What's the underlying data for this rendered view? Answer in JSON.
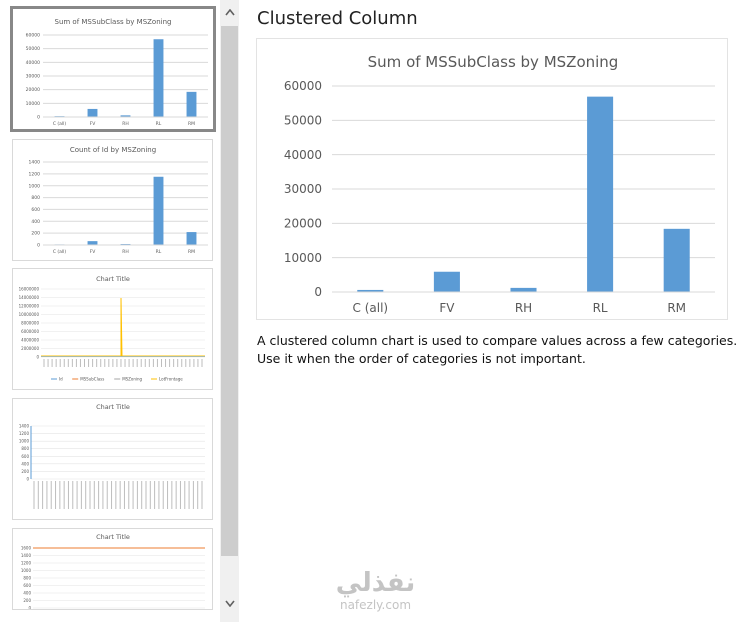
{
  "preview": {
    "title": "Clustered Column",
    "description": "A clustered column chart is used to compare values across a few categories. Use it when the order of categories is not important."
  },
  "thumbnails": [
    {
      "title": "Sum of MSSubClass by MSZoning",
      "selected": true,
      "type": "bar",
      "categories": [
        "C (all)",
        "FV",
        "RH",
        "RL",
        "RM"
      ],
      "values": [
        600,
        5900,
        1200,
        56900,
        18400
      ],
      "y_ticks": [
        "0",
        "10000",
        "20000",
        "30000",
        "40000",
        "50000",
        "60000"
      ],
      "ylim": [
        0,
        60000
      ]
    },
    {
      "title": "Count of Id by MSZoning",
      "selected": false,
      "type": "bar",
      "categories": [
        "C (all)",
        "FV",
        "RH",
        "RL",
        "RM"
      ],
      "values": [
        10,
        65,
        16,
        1151,
        218
      ],
      "y_ticks": [
        "0",
        "200",
        "400",
        "600",
        "800",
        "1000",
        "1200",
        "1400"
      ],
      "ylim": [
        0,
        1400
      ]
    },
    {
      "title": "Chart Title",
      "selected": false,
      "type": "line",
      "y_ticks": [
        "0",
        "2000000",
        "4000000",
        "6000000",
        "8000000",
        "10000000",
        "12000000",
        "14000000",
        "16000000"
      ],
      "ylim": [
        0,
        16000000
      ],
      "legend": [
        "Id",
        "MSSubClass",
        "MSZoning",
        "LotFrontage"
      ],
      "colors": [
        "#5b9bd5",
        "#ed7d31",
        "#a5a5a5",
        "#ffc000"
      ]
    },
    {
      "title": "Chart Title",
      "selected": false,
      "type": "line",
      "y_ticks": [
        "0",
        "200",
        "400",
        "600",
        "800",
        "1000",
        "1200",
        "1400"
      ],
      "ylim": [
        0,
        1400
      ]
    },
    {
      "title": "Chart Title",
      "selected": false,
      "type": "line",
      "y_ticks": [
        "0",
        "200",
        "400",
        "600",
        "800",
        "1000",
        "1200",
        "1400",
        "1600"
      ],
      "ylim": [
        0,
        1600
      ]
    }
  ],
  "chart_data": {
    "type": "bar",
    "title": "Sum of MSSubClass by MSZoning",
    "categories": [
      "C (all)",
      "FV",
      "RH",
      "RL",
      "RM"
    ],
    "values": [
      600,
      5900,
      1200,
      56900,
      18400
    ],
    "y_ticks": [
      "0",
      "10000",
      "20000",
      "30000",
      "40000",
      "50000",
      "60000"
    ],
    "ylim": [
      0,
      60000
    ],
    "xlabel": "",
    "ylabel": "",
    "grid": true,
    "bar_color": "#5b9bd5"
  },
  "colors": {
    "bar": "#5b9bd5",
    "grid": "#d9d9d9",
    "axis_text": "#595959"
  },
  "scrollbar": {
    "up_icon": "triangle-up-icon",
    "down_icon": "chevron-down-icon"
  },
  "watermark": {
    "arabic": "نفذلي",
    "latin": "nafezly.com"
  }
}
